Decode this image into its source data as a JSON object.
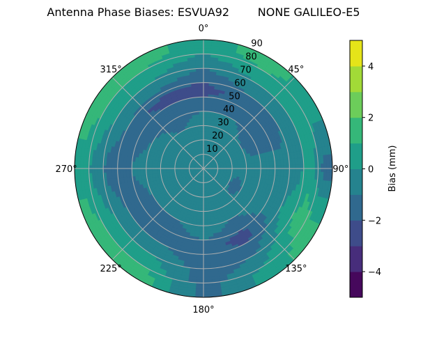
{
  "chart_data": {
    "type": "heatmap",
    "subtype": "polar-filled-contour",
    "title": "Antenna Phase Biases: ESVUA92        NONE GALILEO-E5",
    "theta_direction": "clockwise",
    "theta_zero": "top",
    "theta_tick_labels": [
      "0°",
      "45°",
      "90°",
      "135°",
      "180°",
      "225°",
      "270°",
      "315°"
    ],
    "theta_ticks": [
      0,
      45,
      90,
      135,
      180,
      225,
      270,
      315
    ],
    "r_ticks": [
      10,
      20,
      30,
      40,
      50,
      60,
      70,
      80,
      90
    ],
    "r_tick_labels": [
      "10",
      "20",
      "30",
      "40",
      "50",
      "60",
      "70",
      "80",
      "90"
    ],
    "rlim": [
      0,
      90
    ],
    "grid": true,
    "azimuth": [
      0,
      30,
      60,
      90,
      120,
      150,
      180,
      210,
      240,
      270,
      300,
      330
    ],
    "zenith": [
      5,
      15,
      25,
      35,
      45,
      55,
      65,
      75,
      85
    ],
    "values": [
      [
        -0.5,
        -0.5,
        -0.5,
        -0.5,
        -1.5,
        -2.5,
        -1.5,
        -0.5,
        0.5
      ],
      [
        -0.5,
        -0.5,
        -0.5,
        -0.5,
        -1.5,
        -1.5,
        -0.5,
        0.5,
        1.5
      ],
      [
        -0.5,
        -0.5,
        -0.5,
        -1.5,
        -1.5,
        -1.5,
        -0.5,
        0.5,
        0.5
      ],
      [
        -0.5,
        -0.5,
        -0.5,
        -0.5,
        -0.5,
        -0.5,
        -0.5,
        0.5,
        -1.5
      ],
      [
        -0.5,
        -0.5,
        -1.5,
        -0.5,
        -0.5,
        -0.5,
        0.5,
        1.5,
        1.5
      ],
      [
        -0.5,
        -0.5,
        -0.5,
        -0.5,
        -1.5,
        -2.5,
        -1.5,
        -0.5,
        0.5
      ],
      [
        -0.5,
        -0.5,
        -0.5,
        -0.5,
        -0.5,
        -1.5,
        -1.5,
        -1.5,
        -1.5
      ],
      [
        -0.5,
        -0.5,
        -0.5,
        -0.5,
        -1.5,
        -1.5,
        -0.5,
        0.5,
        1.5
      ],
      [
        -0.5,
        -0.5,
        -0.5,
        -0.5,
        -1.5,
        -1.5,
        -0.5,
        0.5,
        1.5
      ],
      [
        -0.5,
        -0.5,
        -0.5,
        -0.5,
        -0.5,
        -1.5,
        -1.5,
        -0.5,
        0.5
      ],
      [
        -0.5,
        -0.5,
        -0.5,
        -0.5,
        -1.5,
        -1.5,
        -0.5,
        0.5,
        1.5
      ],
      [
        -0.5,
        -0.5,
        -0.5,
        -1.5,
        -1.5,
        -2.5,
        -0.5,
        0.5,
        1.5
      ]
    ],
    "levels": [
      -5,
      -4,
      -3,
      -2,
      -1,
      0,
      1,
      2,
      3,
      4,
      5
    ],
    "level_colors": [
      "#46085c",
      "#472d7b",
      "#3e4c8a",
      "#30698e",
      "#25838e",
      "#1f9e89",
      "#35b779",
      "#6ccd5a",
      "#a2da37",
      "#e5e419"
    ],
    "colorbar": {
      "label": "Bias (mm)",
      "ticks": [
        4,
        2,
        0,
        -2,
        -4
      ],
      "tick_labels": [
        "4",
        "2",
        "0",
        "−2",
        "−4"
      ],
      "range": [
        -5,
        5
      ]
    }
  }
}
